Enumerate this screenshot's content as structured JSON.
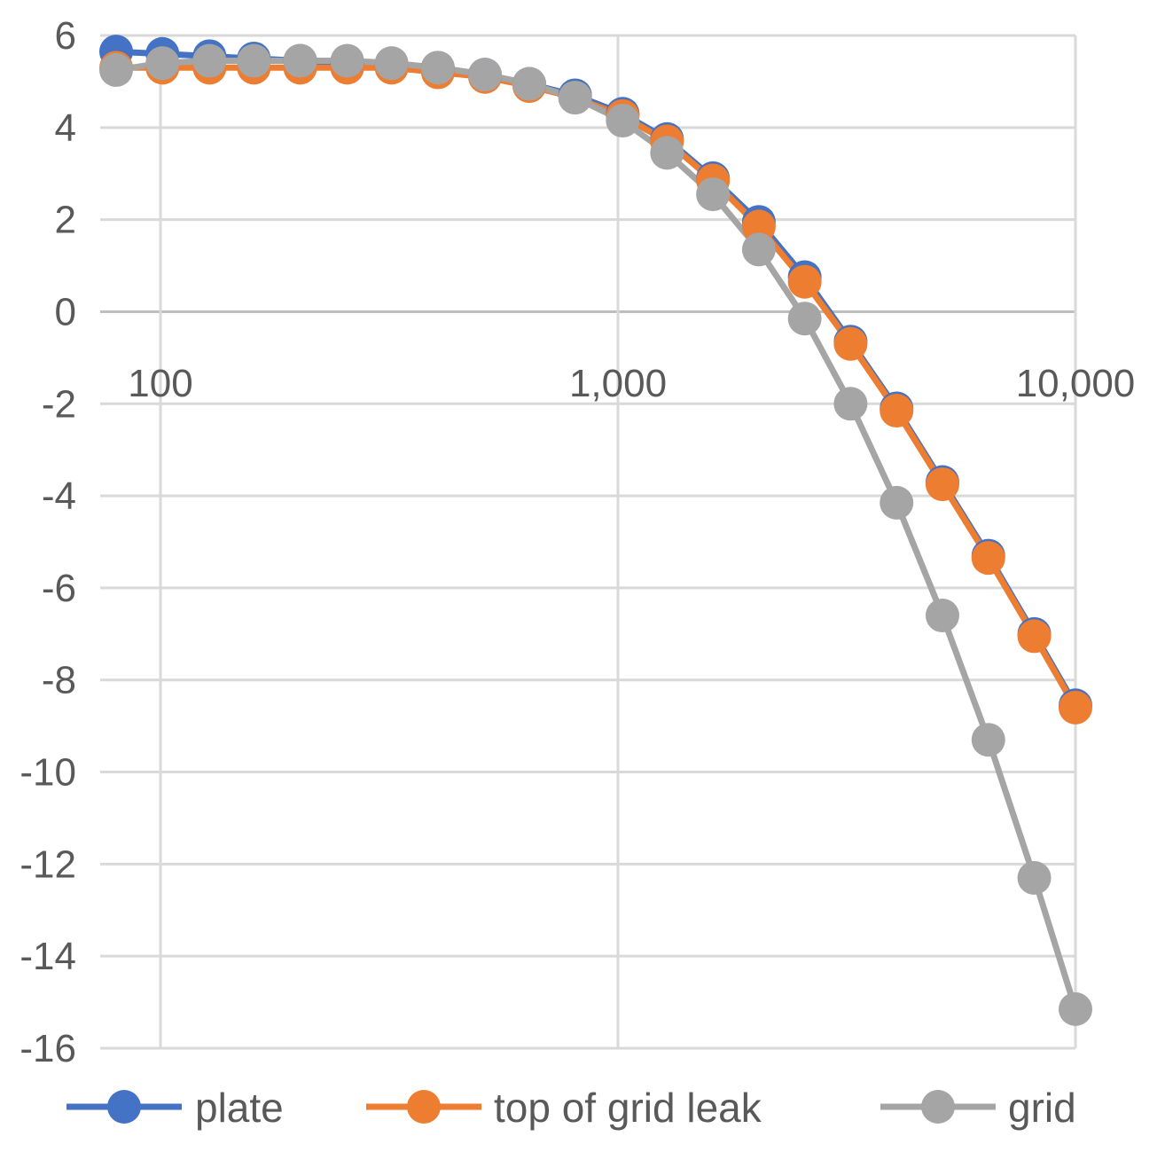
{
  "chart_data": {
    "type": "line",
    "title": "",
    "xlabel": "",
    "ylabel": "",
    "x_scale": "log",
    "xlim": [
      80,
      10000
    ],
    "ylim": [
      -16,
      6
    ],
    "yticks": [
      6,
      4,
      2,
      0,
      -2,
      -4,
      -6,
      -8,
      -10,
      -12,
      -14,
      -16
    ],
    "ytick_labels": [
      "6",
      "4",
      "2",
      "0",
      "-2",
      "-4",
      "-6",
      "-8",
      "-10",
      "-12",
      "-14",
      "-16"
    ],
    "xticks": [
      100,
      1000,
      10000
    ],
    "xtick_labels": [
      "100",
      "1,000",
      "10,000"
    ],
    "grid": true,
    "legend_position": "bottom",
    "x": [
      80,
      101,
      128,
      160,
      202,
      256,
      320,
      404,
      512,
      640,
      806,
      1024,
      1280,
      1613,
      2032,
      2560,
      3225,
      4064,
      5120,
      6451,
      8128,
      10000
    ],
    "series": [
      {
        "name": "plate",
        "color": "#4472C4",
        "values": [
          5.65,
          5.6,
          5.55,
          5.5,
          5.45,
          5.4,
          5.35,
          5.3,
          5.15,
          4.95,
          4.7,
          4.3,
          3.75,
          2.9,
          1.95,
          0.75,
          -0.65,
          -2.1,
          -3.7,
          -5.3,
          -7.0,
          -8.55
        ]
      },
      {
        "name": "top of grid leak",
        "color": "#ED7D31",
        "values": [
          5.3,
          5.3,
          5.3,
          5.3,
          5.3,
          5.3,
          5.3,
          5.2,
          5.1,
          4.9,
          4.65,
          4.25,
          3.7,
          2.85,
          1.85,
          0.65,
          -0.7,
          -2.15,
          -3.75,
          -5.35,
          -7.05,
          -8.6
        ]
      },
      {
        "name": "grid",
        "color": "#A5A5A5",
        "values": [
          5.25,
          5.4,
          5.45,
          5.45,
          5.45,
          5.45,
          5.4,
          5.3,
          5.15,
          4.95,
          4.65,
          4.15,
          3.45,
          2.55,
          1.35,
          -0.15,
          -2.0,
          -4.15,
          -6.6,
          -9.3,
          -12.3,
          -15.15
        ]
      }
    ]
  }
}
